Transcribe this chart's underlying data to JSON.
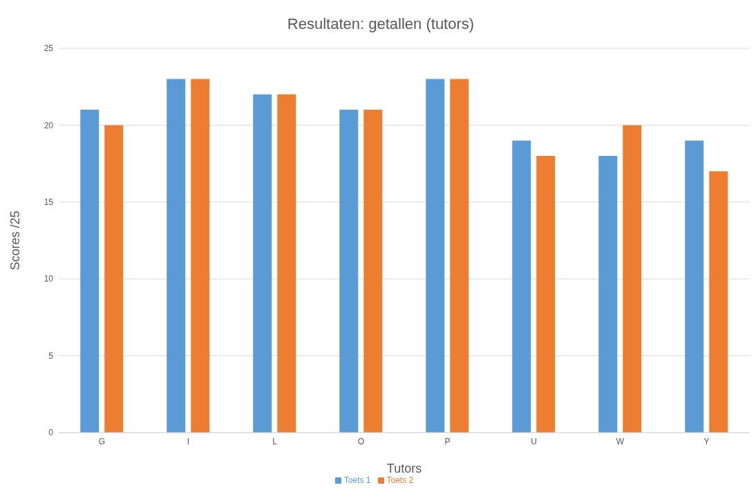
{
  "chart_data": {
    "type": "bar",
    "title": "Resultaten: getallen (tutors)",
    "xlabel": "Tutors",
    "ylabel": "Scores /25",
    "categories": [
      "G",
      "I",
      "L",
      "O",
      "P",
      "U",
      "W",
      "Y"
    ],
    "series": [
      {
        "name": "Toets 1",
        "color": "#5b9bd5",
        "values": [
          21,
          23,
          22,
          21,
          23,
          19,
          18,
          19
        ]
      },
      {
        "name": "Toets 2",
        "color": "#ed7d31",
        "values": [
          20,
          23,
          22,
          21,
          23,
          18,
          20,
          17
        ]
      }
    ],
    "ylim": [
      0,
      25
    ],
    "yticks": [
      0,
      5,
      10,
      15,
      20,
      25
    ],
    "grid": "y",
    "legend": "bottom"
  }
}
